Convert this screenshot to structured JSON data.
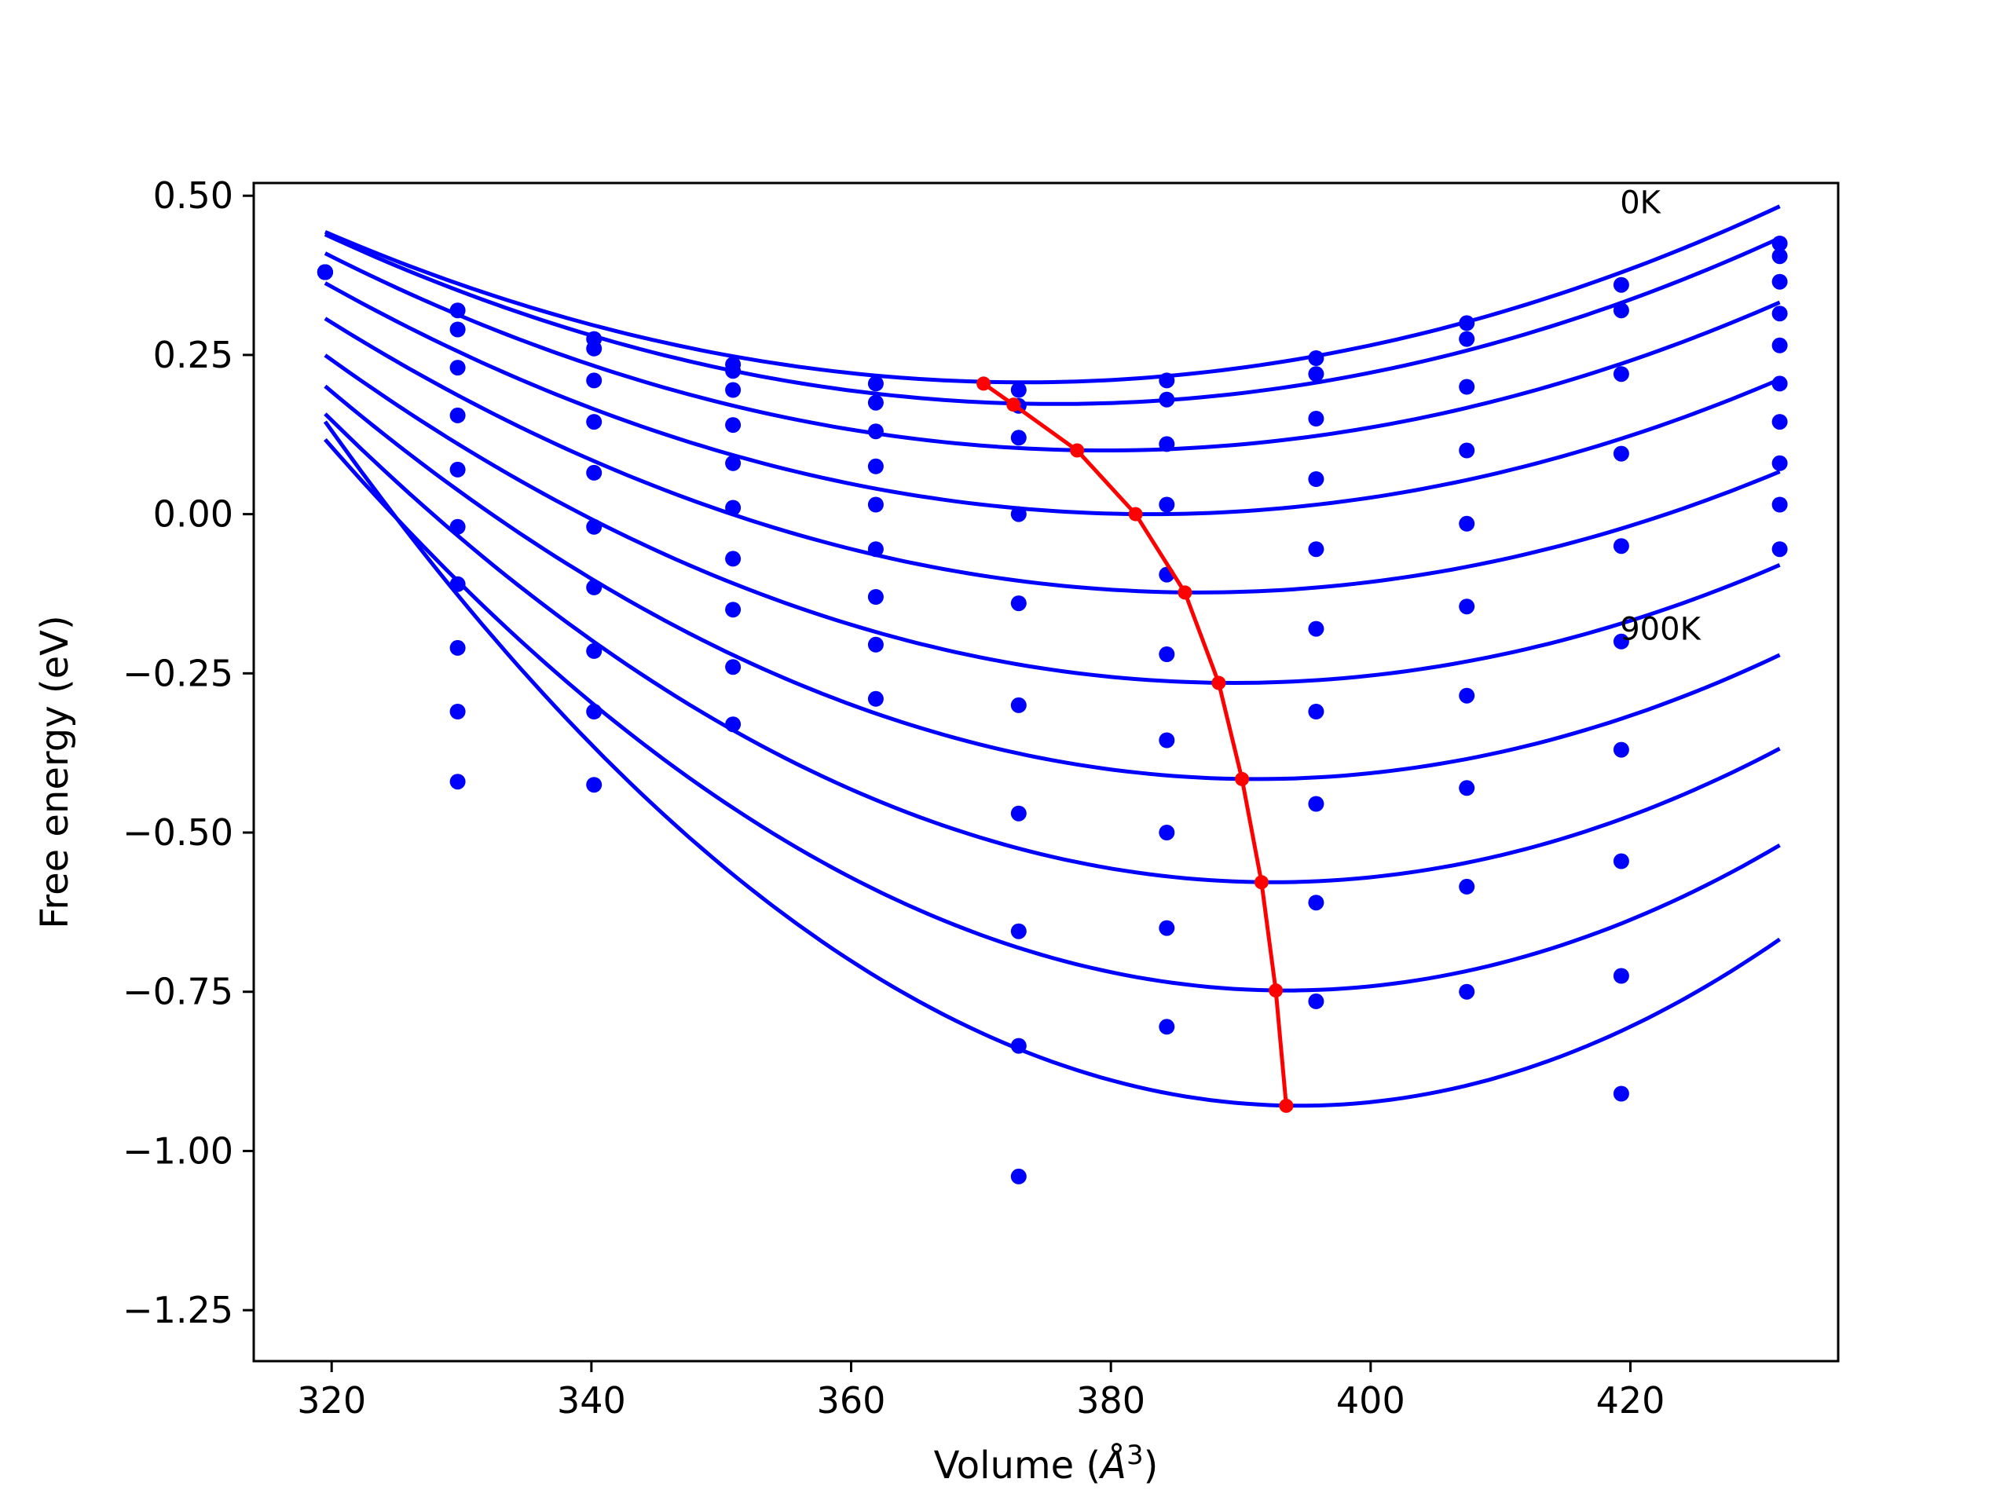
{
  "chart_data": {
    "type": "scatter",
    "xlabel": "Volume",
    "xlabel_unit": "Å",
    "xlabel_exp": "3",
    "ylabel": "Free energy (eV)",
    "xlim": [
      314,
      436
    ],
    "ylim": [
      -1.33,
      0.52
    ],
    "xticks": [
      320,
      340,
      360,
      380,
      400,
      420
    ],
    "yticks": [
      0.5,
      0.25,
      0.0,
      -0.25,
      -0.5,
      -0.75,
      -1.0,
      -1.25
    ],
    "ytick_labels": [
      "0.50",
      "0.25",
      "0.00",
      "−0.25",
      "−0.50",
      "−0.75",
      "−1.00",
      "−1.25"
    ],
    "xtick_labels": [
      "320",
      "340",
      "360",
      "380",
      "400",
      "420"
    ],
    "grid": false,
    "colors": {
      "data": "#0000ff",
      "minima": "#ff0000",
      "frame": "#000000"
    },
    "annotations": [
      {
        "text": "0K",
        "x": 419.2,
        "y": 0.49
      },
      {
        "text": "900K",
        "x": 419.2,
        "y": -0.18
      }
    ],
    "volumes": [
      319.5,
      329.7,
      340.2,
      350.9,
      361.9,
      372.9,
      384.3,
      395.8,
      407.4,
      419.3,
      431.5
    ],
    "series": [
      {
        "values": [
          0.38,
          0.32,
          0.275,
          0.235,
          0.205,
          0.195,
          0.21,
          0.245,
          0.3,
          0.36,
          0.425
        ]
      },
      {
        "values": [
          0.38,
          0.29,
          0.26,
          0.225,
          0.175,
          0.17,
          0.18,
          0.22,
          0.275,
          0.32,
          0.405
        ]
      },
      {
        "values": [
          0.38,
          0.23,
          0.21,
          0.195,
          0.13,
          0.12,
          0.11,
          0.15,
          0.2,
          0.22,
          0.365
        ]
      },
      {
        "values": [
          0.38,
          0.155,
          0.145,
          0.14,
          0.075,
          0.0,
          0.015,
          0.055,
          0.1,
          0.095,
          0.315
        ]
      },
      {
        "values": [
          0.38,
          0.07,
          0.065,
          0.08,
          0.015,
          -0.14,
          -0.095,
          -0.055,
          -0.015,
          -0.05,
          0.265
        ]
      },
      {
        "values": [
          0.38,
          -0.02,
          -0.02,
          0.01,
          -0.055,
          -0.3,
          -0.22,
          -0.18,
          -0.145,
          -0.2,
          0.205
        ]
      },
      {
        "values": [
          0.38,
          -0.11,
          -0.115,
          -0.07,
          -0.13,
          -0.47,
          -0.355,
          -0.31,
          -0.285,
          -0.37,
          0.145
        ]
      },
      {
        "values": [
          0.38,
          -0.21,
          -0.215,
          -0.15,
          -0.205,
          -0.655,
          -0.5,
          -0.455,
          -0.43,
          -0.545,
          0.08
        ]
      },
      {
        "values": [
          0.38,
          -0.31,
          -0.31,
          -0.24,
          -0.29,
          -0.835,
          -0.65,
          -0.61,
          -0.585,
          -0.725,
          0.015
        ]
      },
      {
        "values": [
          0.38,
          -0.42,
          -0.425,
          -0.33,
          null,
          -1.04,
          -0.805,
          -0.765,
          -0.75,
          -0.91,
          -0.055
        ]
      }
    ],
    "fits": [
      {
        "x0": 373.3,
        "y0": 0.207,
        "a": 8.16e-05,
        "xmin": 319.5,
        "xmax": 431.5
      },
      {
        "x0": 375.8,
        "y0": 0.173,
        "a": 8.4e-05,
        "xmin": 319.5,
        "xmax": 431.5
      },
      {
        "x0": 379.5,
        "y0": 0.1,
        "a": 8.6e-05,
        "xmin": 319.5,
        "xmax": 431.5
      },
      {
        "x0": 383.0,
        "y0": 0.0,
        "a": 9e-05,
        "xmin": 319.5,
        "xmax": 431.5
      },
      {
        "x0": 386.8,
        "y0": -0.123,
        "a": 9.5e-05,
        "xmin": 319.5,
        "xmax": 431.5
      },
      {
        "x0": 389.5,
        "y0": -0.265,
        "a": 0.000105,
        "xmin": 319.5,
        "xmax": 431.5
      },
      {
        "x0": 391.2,
        "y0": -0.416,
        "a": 0.00012,
        "xmin": 319.5,
        "xmax": 431.5
      },
      {
        "x0": 392.5,
        "y0": -0.578,
        "a": 0.000138,
        "xmin": 319.5,
        "xmax": 431.5
      },
      {
        "x0": 393.5,
        "y0": -0.748,
        "a": 0.000158,
        "xmin": 319.5,
        "xmax": 431.5
      },
      {
        "x0": 394.5,
        "y0": -0.929,
        "a": 0.000191,
        "xmin": 319.5,
        "xmax": 431.5
      }
    ],
    "minima": {
      "x": [
        370.2,
        372.5,
        377.4,
        381.9,
        385.7,
        388.3,
        390.1,
        391.6,
        392.7,
        393.5
      ],
      "y": [
        0.205,
        0.172,
        0.1,
        0.0,
        -0.123,
        -0.265,
        -0.416,
        -0.578,
        -0.748,
        -0.929
      ]
    }
  }
}
